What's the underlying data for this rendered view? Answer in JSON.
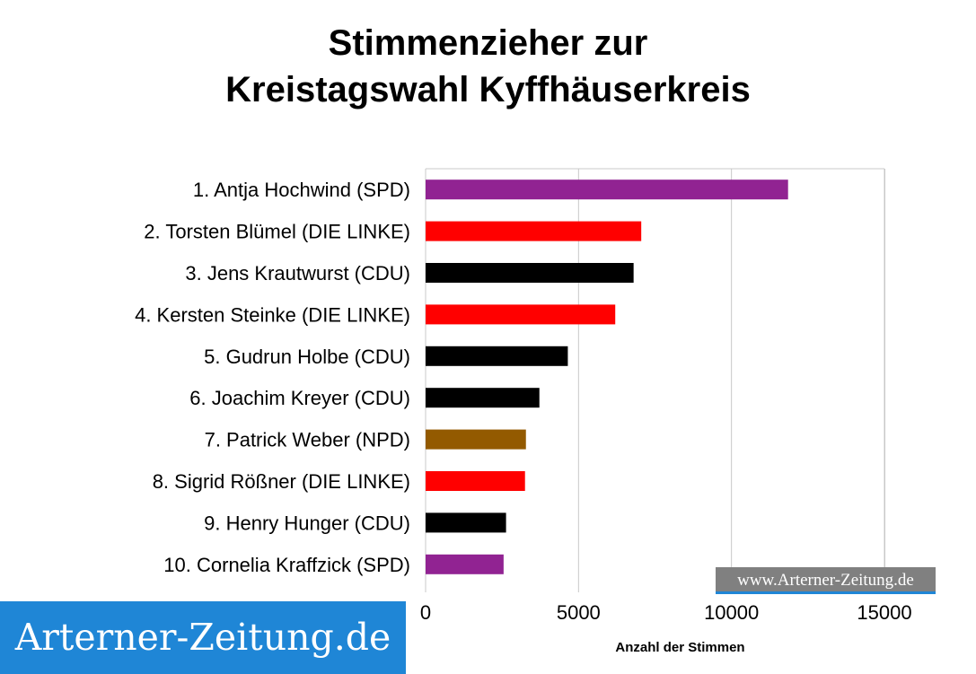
{
  "chart_data": {
    "type": "bar",
    "orientation": "horizontal",
    "title_lines": [
      "Stimmenzieher zur",
      "Kreistagswahl Kyffhäuserkreis"
    ],
    "xlabel": "Anzahl der Stimmen",
    "ylabel": "",
    "xlim": [
      0,
      15000
    ],
    "xticks": [
      "0",
      "5000",
      "10000",
      "15000"
    ],
    "grid": "vertical",
    "categories": [
      "1. Antja Hochwind (SPD)",
      "2. Torsten Blümel (DIE LINKE)",
      "3. Jens Krautwurst (CDU)",
      "4. Kersten Steinke (DIE LINKE)",
      "5. Gudrun Holbe (CDU)",
      "6. Joachim Kreyer (CDU)",
      "7. Patrick Weber (NPD)",
      "8. Sigrid Rößner (DIE LINKE)",
      "9. Henry Hunger (CDU)",
      "10. Cornelia Kraffzick (SPD)"
    ],
    "values": [
      11850,
      7050,
      6800,
      6200,
      4650,
      3720,
      3280,
      3250,
      2630,
      2550
    ],
    "colors": [
      "#912392",
      "#ff0000",
      "#000000",
      "#ff0000",
      "#000000",
      "#000000",
      "#935a00",
      "#ff0000",
      "#000000",
      "#912392"
    ]
  },
  "banner": {
    "text": "Arterner-Zeitung.de"
  },
  "watermark": {
    "text": "www.Arterner-Zeitung.de"
  }
}
